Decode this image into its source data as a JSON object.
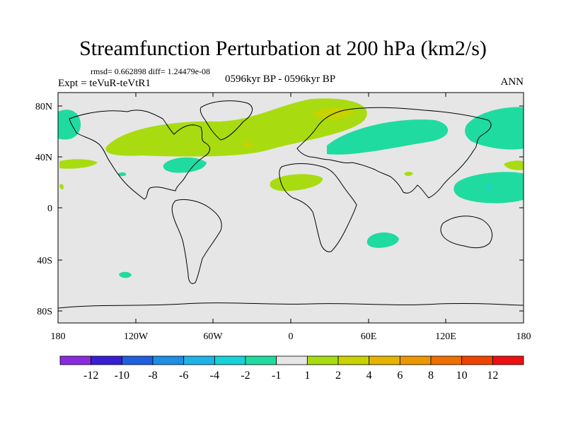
{
  "title": "Streamfunction Perturbation at 200 hPa (km2/s)",
  "stats": "rmsd= 0.662898 diff= 1.24479e-08",
  "expt": "Expt = teVuR-teVtR1",
  "period": "0596kyr BP - 0596kyr BP",
  "season": "ANN",
  "lat_labels": [
    "80N",
    "40N",
    "0",
    "40S",
    "80S"
  ],
  "lon_labels": [
    "180",
    "120W",
    "60W",
    "0",
    "60E",
    "120E",
    "180"
  ],
  "colorbar": {
    "colors": [
      "#8a2be2",
      "#3a1ed6",
      "#1f5fe0",
      "#1e8ee6",
      "#1fb4e8",
      "#17d2d8",
      "#20dba0",
      "#e6e6e6",
      "#a8dc10",
      "#c8d200",
      "#e6b400",
      "#ee9600",
      "#ee6e00",
      "#ee4400",
      "#ee1010"
    ],
    "labels": [
      "-12",
      "-10",
      "-8",
      "-6",
      "-4",
      "-2",
      "-1",
      "1",
      "2",
      "4",
      "6",
      "8",
      "10",
      "12"
    ]
  }
}
